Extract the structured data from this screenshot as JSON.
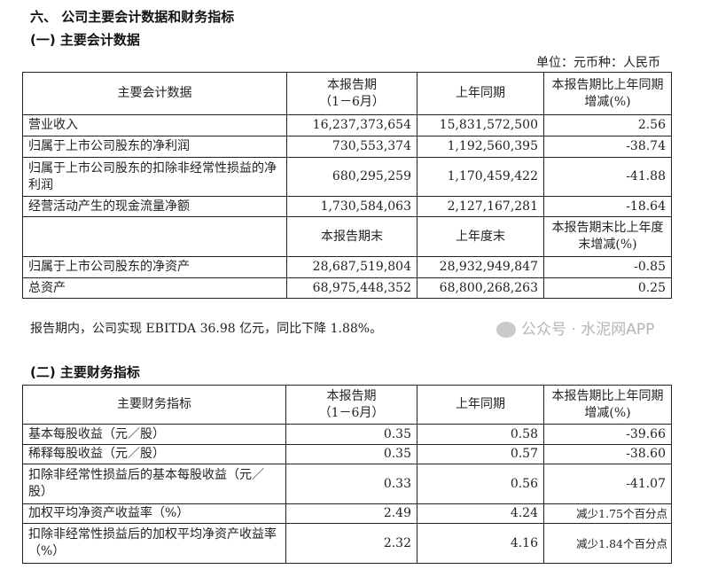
{
  "heading": "六、 公司主要会计数据和财务指标",
  "section1": {
    "title": "(一) 主要会计数据",
    "unit": "单位：元币种：人民币",
    "headers": [
      "主要会计数据",
      "本报告期\n（1－6月）",
      "上年同期",
      "本报告期比上年同期增减(%)"
    ],
    "rows": [
      [
        "营业收入",
        "16,237,373,654",
        "15,831,572,500",
        "2.56"
      ],
      [
        "归属于上市公司股东的净利润",
        "730,553,374",
        "1,192,560,395",
        "-38.74"
      ],
      [
        "归属于上市公司股东的扣除非经常性损益的净利润",
        "680,295,259",
        "1,170,459,422",
        "-41.88"
      ],
      [
        "经营活动产生的现金流量净额",
        "1,730,584,063",
        "2,127,167,281",
        "-18.64"
      ]
    ],
    "headers2": [
      "",
      "本报告期末",
      "上年度末",
      "本报告期末比上年度末增减(%)"
    ],
    "rows2": [
      [
        "归属于上市公司股东的净资产",
        "28,687,519,804",
        "28,932,949,847",
        "-0.85"
      ],
      [
        "总资产",
        "68,975,448,352",
        "68,800,268,263",
        "0.25"
      ]
    ]
  },
  "note": "报告期内，公司实现 EBITDA 36.98 亿元，同比下降 1.88%。",
  "section2": {
    "title": "(二) 主要财务指标",
    "headers": [
      "主要财务指标",
      "本报告期\n（1－6月）",
      "上年同期",
      "本报告期比上年同期增减(%)"
    ],
    "rows": [
      [
        "基本每股收益（元／股）",
        "0.35",
        "0.58",
        "-39.66"
      ],
      [
        "稀释每股收益（元／股）",
        "0.35",
        "0.57",
        "-38.60"
      ],
      [
        "扣除非经常性损益后的基本每股收益（元／股）",
        "0.33",
        "0.56",
        "-41.07"
      ],
      [
        "加权平均净资产收益率（%）",
        "2.49",
        "4.24",
        "减少1.75个百分点"
      ],
      [
        "扣除非经常性损益后的加权平均净资产收益率（%）",
        "2.32",
        "4.16",
        "减少1.84个百分点"
      ]
    ]
  },
  "watermark": "公众号 · 水泥网APP"
}
